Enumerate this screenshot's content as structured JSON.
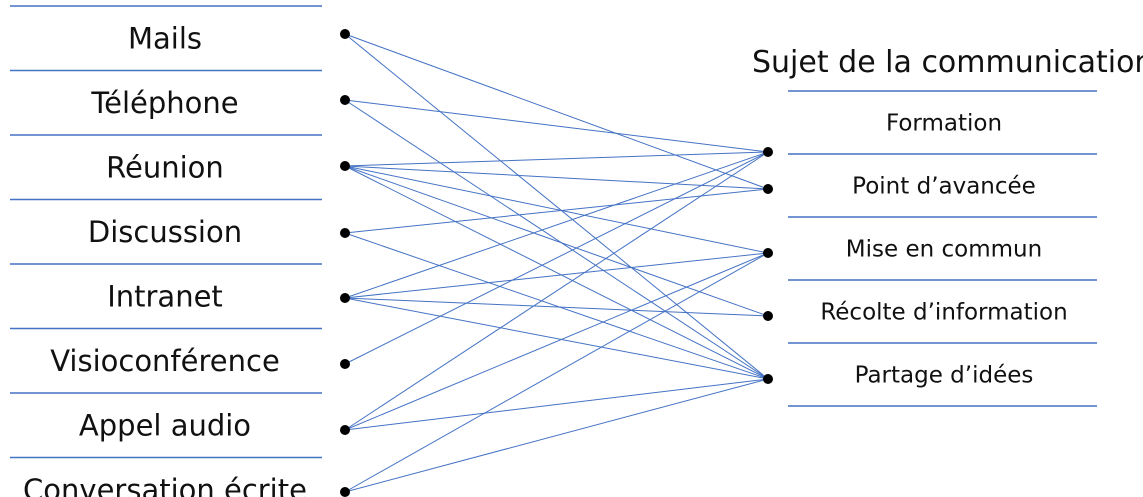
{
  "title": "Sujet de la communication",
  "left_items": [
    "Mails",
    "Téléphone",
    "Réunion",
    "Discussion",
    "Intranet",
    "Visioconférence",
    "Appel audio",
    "Conversation écrite"
  ],
  "right_items": [
    "Formation",
    "Point d’avancée",
    "Mise en commun",
    "Récolte d’information",
    "Partage d’idées"
  ],
  "connections": [
    [
      0,
      1
    ],
    [
      0,
      4
    ],
    [
      1,
      0
    ],
    [
      1,
      4
    ],
    [
      2,
      0
    ],
    [
      2,
      1
    ],
    [
      2,
      2
    ],
    [
      2,
      3
    ],
    [
      2,
      4
    ],
    [
      3,
      1
    ],
    [
      3,
      4
    ],
    [
      4,
      0
    ],
    [
      4,
      2
    ],
    [
      4,
      3
    ],
    [
      4,
      4
    ],
    [
      5,
      0
    ],
    [
      6,
      0
    ],
    [
      6,
      2
    ],
    [
      6,
      4
    ],
    [
      7,
      2
    ],
    [
      7,
      4
    ]
  ],
  "colors": {
    "line": "#4472c4",
    "node": "#000000",
    "text": "#111111"
  }
}
